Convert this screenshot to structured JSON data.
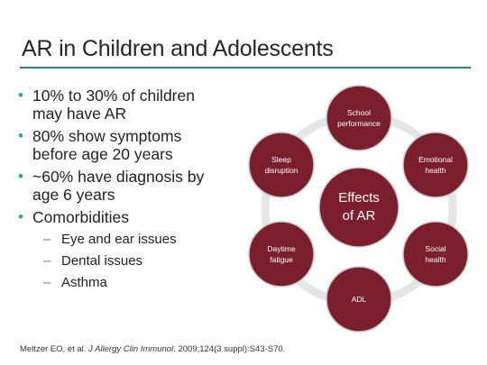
{
  "slide": {
    "title": "AR in Children and Adolescents",
    "bullets": [
      {
        "lines": [
          "10% to 30% of children",
          "may have AR"
        ]
      },
      {
        "lines": [
          "80% show symptoms",
          "before age 20 years"
        ]
      },
      {
        "lines": [
          "~60% have diagnosis by",
          "age 6 years"
        ]
      },
      {
        "lines": [
          "Comorbidities"
        ]
      }
    ],
    "sub_bullets": [
      "Eye and ear issues",
      "Dental issues",
      "Asthma"
    ],
    "bullet_glyph": "•",
    "sub_bullet_glyph": "–",
    "footnote": {
      "authors": "Meltzer EO, et al. ",
      "journal": "J Allergy Clin Immunol",
      "details": ". 2009;124(3 suppl):S43-S70."
    }
  },
  "diagram": {
    "center": {
      "lines": [
        "Effects",
        "of AR"
      ]
    },
    "nodes": [
      {
        "lines": [
          "School",
          "performance"
        ]
      },
      {
        "lines": [
          "Emotional",
          "health"
        ]
      },
      {
        "lines": [
          "Social",
          "health"
        ]
      },
      {
        "lines": [
          "ADL"
        ]
      },
      {
        "lines": [
          "Daytime",
          "fatigue"
        ]
      },
      {
        "lines": [
          "Sleep",
          "disruption"
        ]
      }
    ],
    "colors": {
      "node_fill": "#7a1f2b",
      "node_stroke": "#c9c9c9",
      "ring": "#e6e6e6",
      "accent": "#2e7f8c"
    }
  }
}
